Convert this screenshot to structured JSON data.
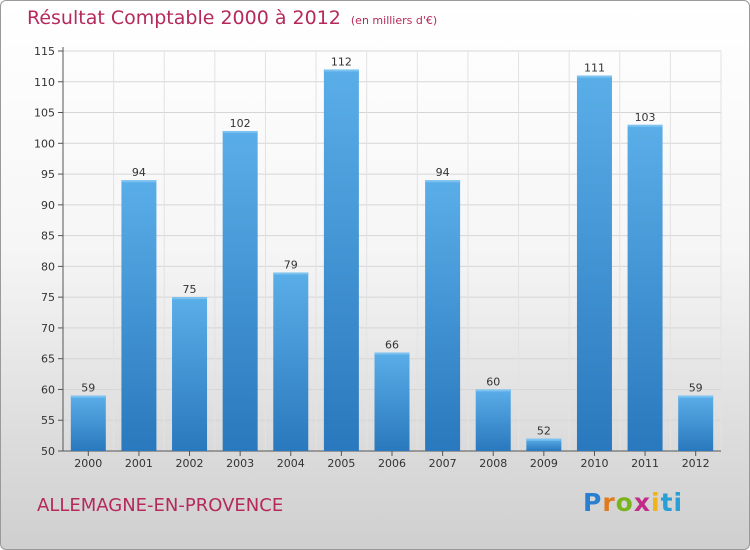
{
  "chart_data": {
    "type": "bar",
    "title": "Résultat Comptable 2000 à 2012",
    "subtitle": "(en milliers d'€)",
    "categories": [
      "2000",
      "2001",
      "2002",
      "2003",
      "2004",
      "2005",
      "2006",
      "2007",
      "2008",
      "2009",
      "2010",
      "2011",
      "2012"
    ],
    "values": [
      59,
      94,
      75,
      102,
      79,
      112,
      66,
      94,
      60,
      52,
      111,
      103,
      59
    ],
    "ylim": [
      50,
      115
    ],
    "yticks": [
      50,
      55,
      60,
      65,
      70,
      75,
      80,
      85,
      90,
      95,
      100,
      105,
      110,
      115
    ],
    "grid": true,
    "bar_color_top": "#5aaee8",
    "bar_color_bottom": "#2a78bd"
  },
  "commune": "ALLEMAGNE-EN-PROVENCE",
  "brand": {
    "letters": [
      "P",
      "r",
      "o",
      "x",
      "i",
      "ti"
    ]
  }
}
